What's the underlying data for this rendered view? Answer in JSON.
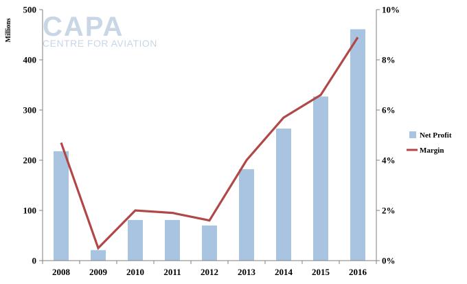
{
  "watermark": {
    "logo": "CAPA",
    "subtitle": "CENTRE FOR AVIATION"
  },
  "chart_data": {
    "type": "bar",
    "categories": [
      "2008",
      "2009",
      "2010",
      "2011",
      "2012",
      "2013",
      "2014",
      "2015",
      "2016"
    ],
    "series": [
      {
        "name": "Net Profit",
        "kind": "bar",
        "axis": "left",
        "color": "#a9c4e0",
        "values": [
          218,
          21,
          81,
          81,
          70,
          182,
          263,
          327,
          461
        ]
      },
      {
        "name": "Margin",
        "kind": "line",
        "axis": "right",
        "color": "#b04848",
        "values": [
          0.047,
          0.005,
          0.02,
          0.019,
          0.016,
          0.04,
          0.057,
          0.066,
          0.089
        ]
      }
    ],
    "ylabel": "Millions",
    "ylim": [
      0,
      500
    ],
    "yticks": [
      "0",
      "100",
      "200",
      "300",
      "400",
      "500"
    ],
    "y2lim": [
      0,
      0.1
    ],
    "y2ticks": [
      "0%",
      "2%",
      "4%",
      "6%",
      "8%",
      "10%"
    ],
    "grid": false,
    "legend_position": "right"
  }
}
